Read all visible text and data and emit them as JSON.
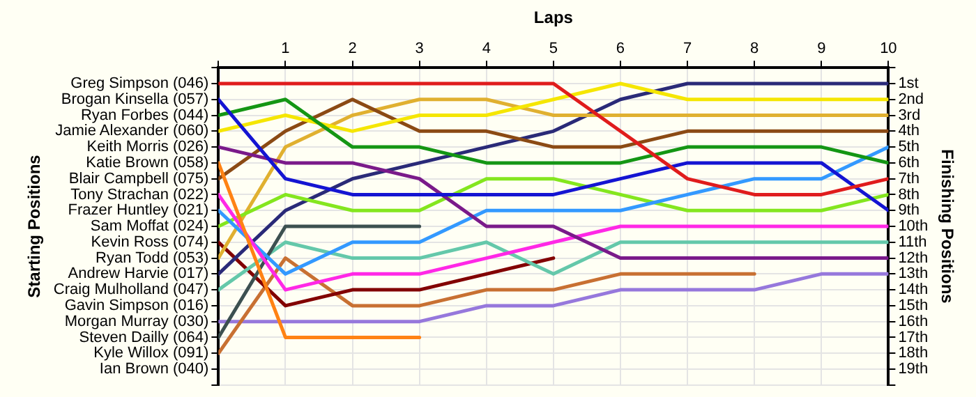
{
  "chart_data": {
    "type": "line",
    "xlabel": "Laps",
    "ylabel": "Finishing Positions",
    "x": [
      0,
      1,
      2,
      3,
      4,
      5,
      6,
      7,
      8,
      9,
      10
    ],
    "xlim": [
      0,
      10
    ],
    "xticks": [
      {
        "value": 0,
        "label": null
      },
      1,
      2,
      3,
      4,
      5,
      6,
      7,
      8,
      9,
      10
    ],
    "ylim": [
      20,
      0
    ],
    "yticks": [
      {
        "value": 0,
        "label": null
      },
      {
        "value": 1,
        "label": "1st"
      },
      {
        "value": 2,
        "label": "2nd"
      },
      {
        "value": 3,
        "label": "3rd"
      },
      {
        "value": 4,
        "label": "4th"
      },
      {
        "value": 5,
        "label": "5th"
      },
      {
        "value": 6,
        "label": "6th"
      },
      {
        "value": 7,
        "label": "7th"
      },
      {
        "value": 8,
        "label": "8th"
      },
      {
        "value": 9,
        "label": "9th"
      },
      {
        "value": 10,
        "label": "10th"
      },
      {
        "value": 11,
        "label": "11th"
      },
      {
        "value": 12,
        "label": "12th"
      },
      {
        "value": 13,
        "label": "13th"
      },
      {
        "value": 14,
        "label": "14th"
      },
      {
        "value": 15,
        "label": "15th"
      },
      {
        "value": 16,
        "label": "16th"
      },
      {
        "value": 17,
        "label": "17th"
      },
      {
        "value": 18,
        "label": "18th"
      },
      {
        "value": 19,
        "label": "19th"
      },
      {
        "value": 20,
        "label": null
      }
    ],
    "annotations": [
      "Greg Simpson (046)",
      "Brogan Kinsella (057)",
      "Ryan Forbes (044)",
      "Jamie Alexander (060)",
      "Keith Morris (026)",
      "Katie Brown (058)",
      "Blair Campbell (075)",
      "Tony Strachan (022)",
      "Frazer Huntley (021)",
      "Sam Moffat (024)",
      "Kevin Ross (074)",
      "Ryan Todd (053)",
      "Andrew Harvie (017)",
      "Craig Mulholland (047)",
      "Gavin Simpson (016)",
      "Morgan Murray (030)",
      "Steven Dailly (064)",
      "Kyle Willox (091)",
      "Ian Brown (040)",
      "Starting Positions"
    ],
    "series": [
      {
        "color": "#e01c1c",
        "values": [
          1,
          1,
          1,
          1,
          1,
          1,
          4,
          7,
          8,
          8,
          7
        ]
      },
      {
        "color": "#1414d2",
        "values": [
          2,
          7,
          8,
          8,
          8,
          8,
          7,
          6,
          6,
          6,
          9
        ]
      },
      {
        "color": "#149614",
        "values": [
          3,
          2,
          5,
          5,
          6,
          6,
          6,
          5,
          5,
          5,
          6
        ]
      },
      {
        "color": "#f5e600",
        "values": [
          4,
          3,
          4,
          3,
          3,
          2,
          1,
          2,
          2,
          2,
          2
        ]
      },
      {
        "color": "#7a1a8a",
        "values": [
          5,
          6,
          6,
          7,
          10,
          10,
          12,
          12,
          12,
          12,
          12
        ]
      },
      {
        "color": "#ff8214",
        "values": [
          6,
          17,
          17,
          17,
          null,
          null,
          null,
          null,
          null,
          null,
          null
        ]
      },
      {
        "color": "#8b4a14",
        "values": [
          7,
          4,
          2,
          4,
          4,
          5,
          5,
          4,
          4,
          4,
          4
        ]
      },
      {
        "color": "#ff28e6",
        "values": [
          8,
          14,
          13,
          13,
          12,
          11,
          10,
          10,
          10,
          10,
          10
        ]
      },
      {
        "color": "#3399ff",
        "values": [
          9,
          13,
          11,
          11,
          9,
          9,
          9,
          8,
          7,
          7,
          5
        ]
      },
      {
        "color": "#84e61e",
        "values": [
          10,
          8,
          9,
          9,
          7,
          7,
          8,
          9,
          9,
          9,
          8
        ]
      },
      {
        "color": "#e0b030",
        "values": [
          12,
          5,
          3,
          2,
          2,
          3,
          3,
          3,
          3,
          3,
          3
        ]
      },
      {
        "color": "#2a2a78",
        "values": [
          13,
          9,
          7,
          6,
          5,
          4,
          2,
          1,
          1,
          1,
          1
        ]
      },
      {
        "color": "#3c5050",
        "values": [
          17,
          10,
          10,
          10,
          null,
          null,
          null,
          null,
          null,
          null,
          null
        ]
      },
      {
        "color": "#64c8aa",
        "values": [
          14,
          11,
          12,
          12,
          11,
          13,
          11,
          11,
          11,
          11,
          11
        ]
      },
      {
        "color": "#820000",
        "values": [
          11,
          15,
          14,
          14,
          13,
          12,
          null,
          null,
          null,
          null,
          null
        ]
      },
      {
        "color": "#c87032",
        "values": [
          18,
          12,
          15,
          15,
          14,
          14,
          13,
          13,
          13,
          null,
          null
        ]
      },
      {
        "color": "#9678dc",
        "values": [
          16,
          16,
          16,
          16,
          15,
          15,
          14,
          14,
          14,
          13,
          13
        ]
      }
    ],
    "grid": true,
    "marker": "none",
    "line_style": "solid"
  }
}
